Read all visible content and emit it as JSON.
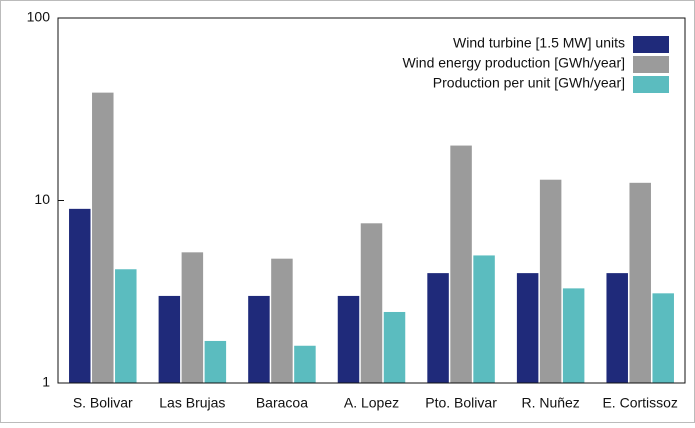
{
  "chart_data": {
    "type": "bar",
    "categories": [
      "S. Bolivar",
      "Las Brujas",
      "Baracoa",
      "A. Lopez",
      "Pto. Bolivar",
      "R. Nuñez",
      "E. Cortissoz"
    ],
    "series": [
      {
        "name": "Wind turbine [1.5 MW] units",
        "color": "#1f2a7a",
        "values": [
          9,
          3,
          3,
          3,
          4,
          4,
          4
        ]
      },
      {
        "name": "Wind energy production [GWh/year]",
        "color": "#9b9b9b",
        "values": [
          39,
          5.2,
          4.8,
          7.5,
          20,
          13,
          12.5
        ]
      },
      {
        "name": "Production per unit [GWh/year]",
        "color": "#5bbcbf",
        "values": [
          4.2,
          1.7,
          1.6,
          2.45,
          5,
          3.3,
          3.1
        ]
      }
    ],
    "ylim": [
      1,
      100
    ],
    "yticks": [
      1,
      10,
      100
    ],
    "log_scale": true,
    "legend": "top-right"
  }
}
